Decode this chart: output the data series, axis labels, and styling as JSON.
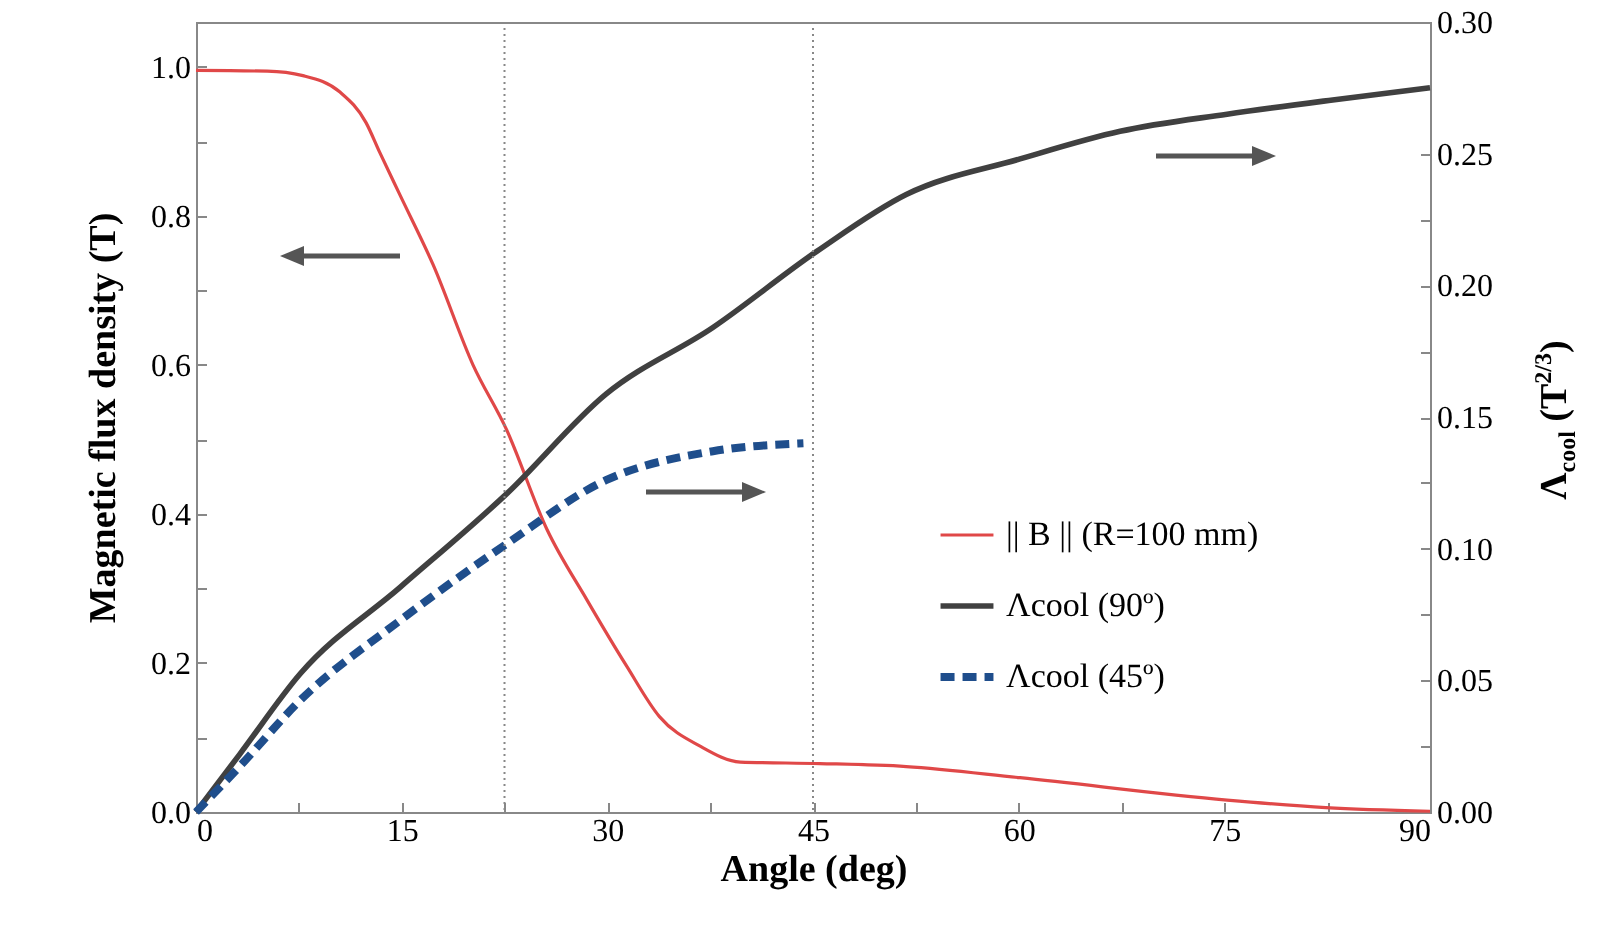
{
  "chart_data": {
    "type": "line",
    "xlabel": "Angle  (deg)",
    "ylabel": "Magnetic flux density  (T)",
    "y2label": "Λ$_{cool}$  (T$^{2/3}$)",
    "xlim": [
      0,
      90
    ],
    "xticks": [
      0,
      {
        "value": 7.5,
        "label": null
      },
      15,
      {
        "value": 22.5,
        "label": null
      },
      30,
      {
        "value": 37.5,
        "label": null
      },
      45,
      {
        "value": 52.5,
        "label": null
      },
      60,
      {
        "value": 67.5,
        "label": null
      },
      75,
      {
        "value": 82.5,
        "label": null
      },
      90
    ],
    "ylim": [
      0,
      1.06
    ],
    "yticks": [
      {
        "value": 0,
        "label": "0.0"
      },
      {
        "value": 0.1,
        "label": null
      },
      {
        "value": 0.2,
        "label": "0.2"
      },
      {
        "value": 0.3,
        "label": null
      },
      {
        "value": 0.4,
        "label": "0.4"
      },
      {
        "value": 0.5,
        "label": null
      },
      {
        "value": 0.6,
        "label": "0.6"
      },
      {
        "value": 0.7,
        "label": null
      },
      {
        "value": 0.8,
        "label": "0.8"
      },
      {
        "value": 0.9,
        "label": null
      },
      {
        "value": 1.0,
        "label": "1.0"
      }
    ],
    "y2lim": [
      0,
      0.3
    ],
    "y2ticks": [
      {
        "value": 0,
        "label": "0.00"
      },
      {
        "value": 0.025,
        "label": null
      },
      {
        "value": 0.05,
        "label": "0.05"
      },
      {
        "value": 0.075,
        "label": null
      },
      {
        "value": 0.1,
        "label": "0.10"
      },
      {
        "value": 0.125,
        "label": null
      },
      {
        "value": 0.15,
        "label": "0.15"
      },
      {
        "value": 0.175,
        "label": null
      },
      {
        "value": 0.2,
        "label": "0.20"
      },
      {
        "value": 0.225,
        "label": null
      },
      {
        "value": 0.25,
        "label": "0.25"
      },
      {
        "value": 0.275,
        "label": null
      },
      {
        "value": 0.3,
        "label": "0.30"
      }
    ],
    "legend": "right",
    "marker": "none",
    "ref_lines": [
      {
        "axis": "x",
        "value": 22.5,
        "color": "#888888",
        "line_style": "dotted"
      },
      {
        "axis": "x",
        "value": 45,
        "color": "#888888",
        "line_style": "dotted"
      }
    ],
    "series": [
      {
        "name": "|| B || (R=100 mm)",
        "color": "#e04848",
        "line_style": "solid",
        "x": [
          0,
          5.2,
          7.8,
          10.5,
          12.4,
          13.4,
          14.9,
          17.3,
          20.2,
          22.65,
          25.6,
          28.5,
          31.4,
          33.8,
          36.8,
          39.7,
          45.5,
          51.8,
          60.1,
          75.2,
          82.4,
          90
        ],
        "values": [
          0.995,
          0.994,
          0.988,
          0.966,
          0.925,
          0.885,
          0.827,
          0.734,
          0.6,
          0.513,
          0.379,
          0.285,
          0.196,
          0.128,
          0.088,
          0.067,
          0.065,
          0.061,
          0.046,
          0.016,
          0.006,
          0.001
        ]
      },
      {
        "name": "Λcool (90º)",
        "color": "#404040",
        "line_style": "solid",
        "axis": "y2",
        "x": [
          0,
          3.2,
          7.6,
          14.9,
          22.65,
          29.9,
          37.7,
          45.3,
          51.8,
          60.1,
          67.4,
          75.2,
          82.9,
          90
        ],
        "values": [
          0,
          0.022,
          0.0525,
          0.0854,
          0.1208,
          0.1587,
          0.184,
          0.213,
          0.2345,
          0.248,
          0.2585,
          0.265,
          0.2704,
          0.275
        ]
      },
      {
        "name": "Λcool (45º)",
        "color": "#1f4e8c",
        "line_style": "dashed",
        "axis": "y2",
        "x": [
          0,
          3.2,
          7.6,
          14.9,
          22.65,
          29.9,
          37.7,
          44.3
        ],
        "values": [
          0,
          0.0174,
          0.0424,
          0.0728,
          0.1018,
          0.126,
          0.137,
          0.14
        ]
      }
    ]
  }
}
